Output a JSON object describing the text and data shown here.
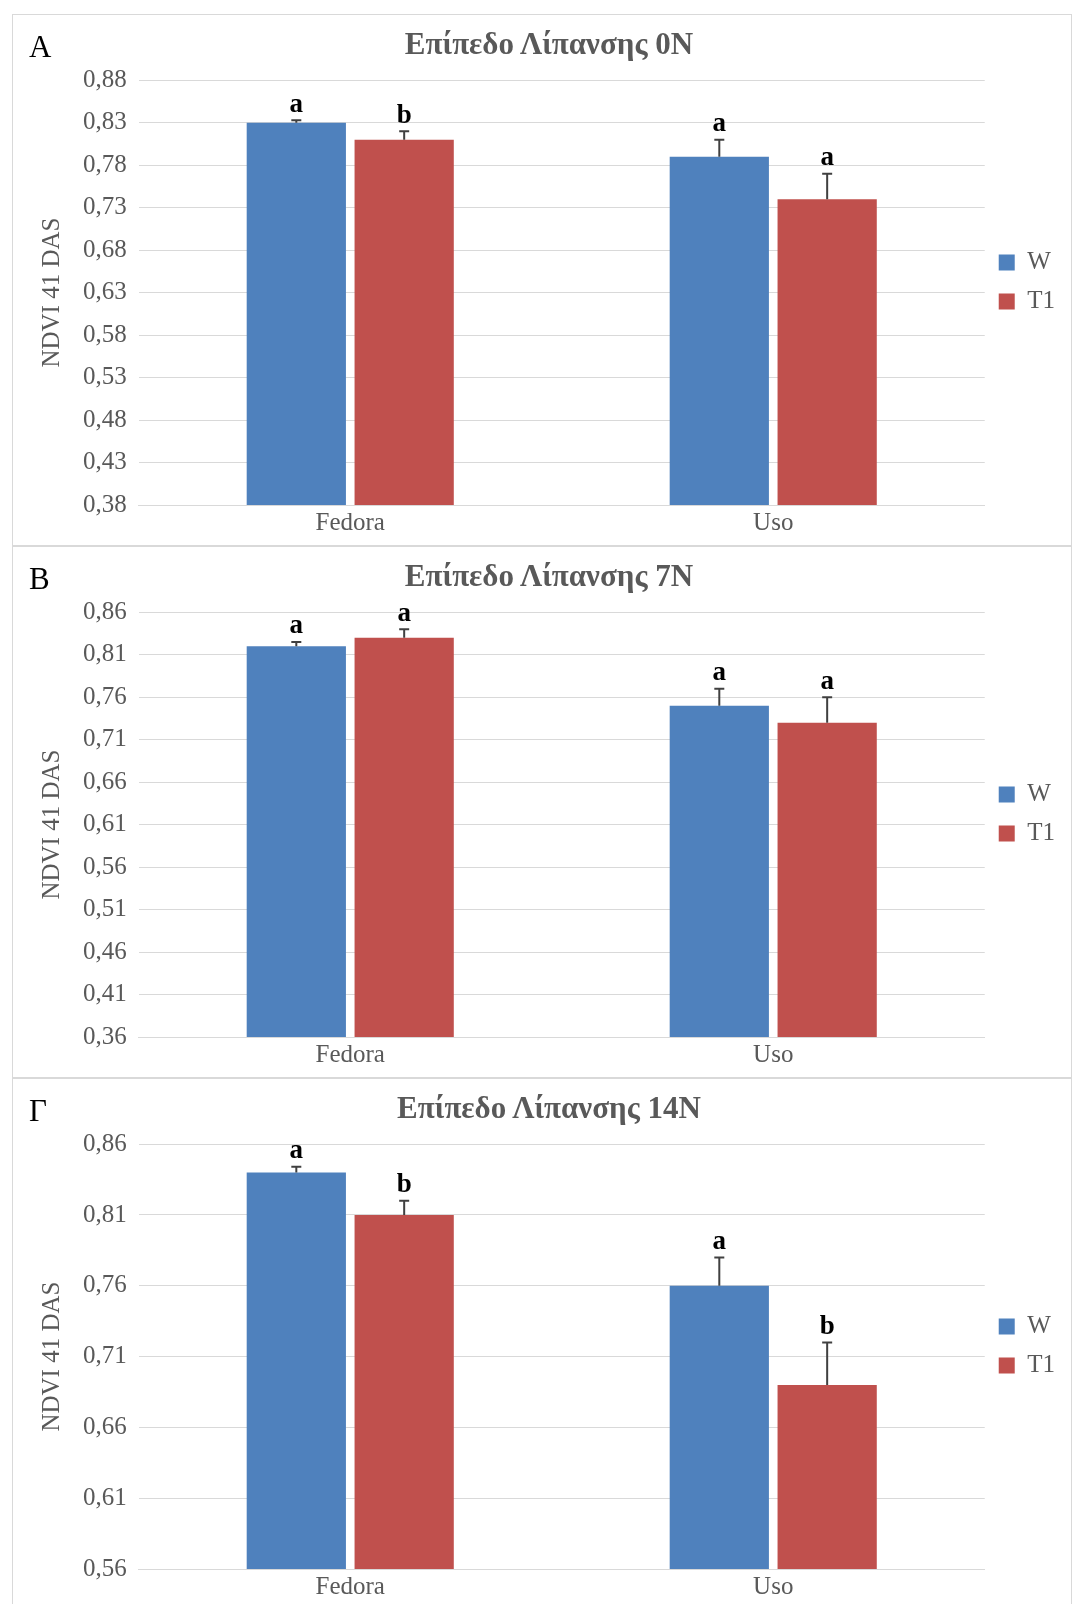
{
  "chart_data": [
    {
      "type": "bar",
      "title": "Επίπεδο Λίπανσης 0N",
      "ylabel": "NDVI 41 DAS",
      "annotations": [
        "A"
      ],
      "categories": [
        "Fedora",
        "Uso"
      ],
      "series": [
        {
          "name": "W",
          "color": "#4f81bd",
          "values": [
            0.83,
            0.79
          ],
          "errors": [
            [
              0.83,
              0.833
            ],
            [
              0.79,
              0.81
            ]
          ],
          "value_labels": [
            "a",
            "a"
          ]
        },
        {
          "name": "T1",
          "color": "#c0504d",
          "values": [
            0.81,
            0.74
          ],
          "errors": [
            [
              0.81,
              0.82
            ],
            [
              0.74,
              0.77
            ]
          ],
          "value_labels": [
            "b",
            "a"
          ]
        }
      ],
      "ylim": [
        0.38,
        0.88
      ],
      "yticks": [
        {
          "value": 0.38,
          "label": "0,38"
        },
        {
          "value": 0.43,
          "label": "0,43"
        },
        {
          "value": 0.48,
          "label": "0,48"
        },
        {
          "value": 0.53,
          "label": "0,53"
        },
        {
          "value": 0.58,
          "label": "0,58"
        },
        {
          "value": 0.63,
          "label": "0,63"
        },
        {
          "value": 0.68,
          "label": "0,68"
        },
        {
          "value": 0.73,
          "label": "0,73"
        },
        {
          "value": 0.78,
          "label": "0,78"
        },
        {
          "value": 0.83,
          "label": "0,83"
        },
        {
          "value": 0.88,
          "label": "0,88"
        }
      ],
      "grid": "y",
      "legend": "right"
    },
    {
      "type": "bar",
      "title": "Επίπεδο Λίπανσης 7N",
      "ylabel": "NDVI 41 DAS",
      "annotations": [
        "B"
      ],
      "categories": [
        "Fedora",
        "Uso"
      ],
      "series": [
        {
          "name": "W",
          "color": "#4f81bd",
          "values": [
            0.82,
            0.75
          ],
          "errors": [
            [
              0.82,
              0.825
            ],
            [
              0.75,
              0.77
            ]
          ],
          "value_labels": [
            "a",
            "a"
          ]
        },
        {
          "name": "T1",
          "color": "#c0504d",
          "values": [
            0.83,
            0.73
          ],
          "errors": [
            [
              0.83,
              0.84
            ],
            [
              0.73,
              0.76
            ]
          ],
          "value_labels": [
            "a",
            "a"
          ]
        }
      ],
      "ylim": [
        0.36,
        0.86
      ],
      "yticks": [
        {
          "value": 0.36,
          "label": "0,36"
        },
        {
          "value": 0.41,
          "label": "0,41"
        },
        {
          "value": 0.46,
          "label": "0,46"
        },
        {
          "value": 0.51,
          "label": "0,51"
        },
        {
          "value": 0.56,
          "label": "0,56"
        },
        {
          "value": 0.61,
          "label": "0,61"
        },
        {
          "value": 0.66,
          "label": "0,66"
        },
        {
          "value": 0.71,
          "label": "0,71"
        },
        {
          "value": 0.76,
          "label": "0,76"
        },
        {
          "value": 0.81,
          "label": "0,81"
        },
        {
          "value": 0.86,
          "label": "0,86"
        }
      ],
      "grid": "y",
      "legend": "right"
    },
    {
      "type": "bar",
      "title": "Επίπεδο Λίπανσης 14N",
      "ylabel": "NDVI 41 DAS",
      "annotations": [
        "Γ"
      ],
      "categories": [
        "Fedora",
        "Uso"
      ],
      "series": [
        {
          "name": "W",
          "color": "#4f81bd",
          "values": [
            0.84,
            0.76
          ],
          "errors": [
            [
              0.84,
              0.844
            ],
            [
              0.76,
              0.78
            ]
          ],
          "value_labels": [
            "a",
            "a"
          ]
        },
        {
          "name": "T1",
          "color": "#c0504d",
          "values": [
            0.81,
            0.69
          ],
          "errors": [
            [
              0.81,
              0.82
            ],
            [
              0.69,
              0.72
            ]
          ],
          "value_labels": [
            "b",
            "b"
          ]
        }
      ],
      "ylim": [
        0.56,
        0.86
      ],
      "yticks": [
        {
          "value": 0.56,
          "label": "0,56"
        },
        {
          "value": 0.61,
          "label": "0,61"
        },
        {
          "value": 0.66,
          "label": "0,66"
        },
        {
          "value": 0.71,
          "label": "0,71"
        },
        {
          "value": 0.76,
          "label": "0,76"
        },
        {
          "value": 0.81,
          "label": "0,81"
        },
        {
          "value": 0.86,
          "label": "0,86"
        }
      ],
      "grid": "y",
      "legend": "right"
    }
  ]
}
